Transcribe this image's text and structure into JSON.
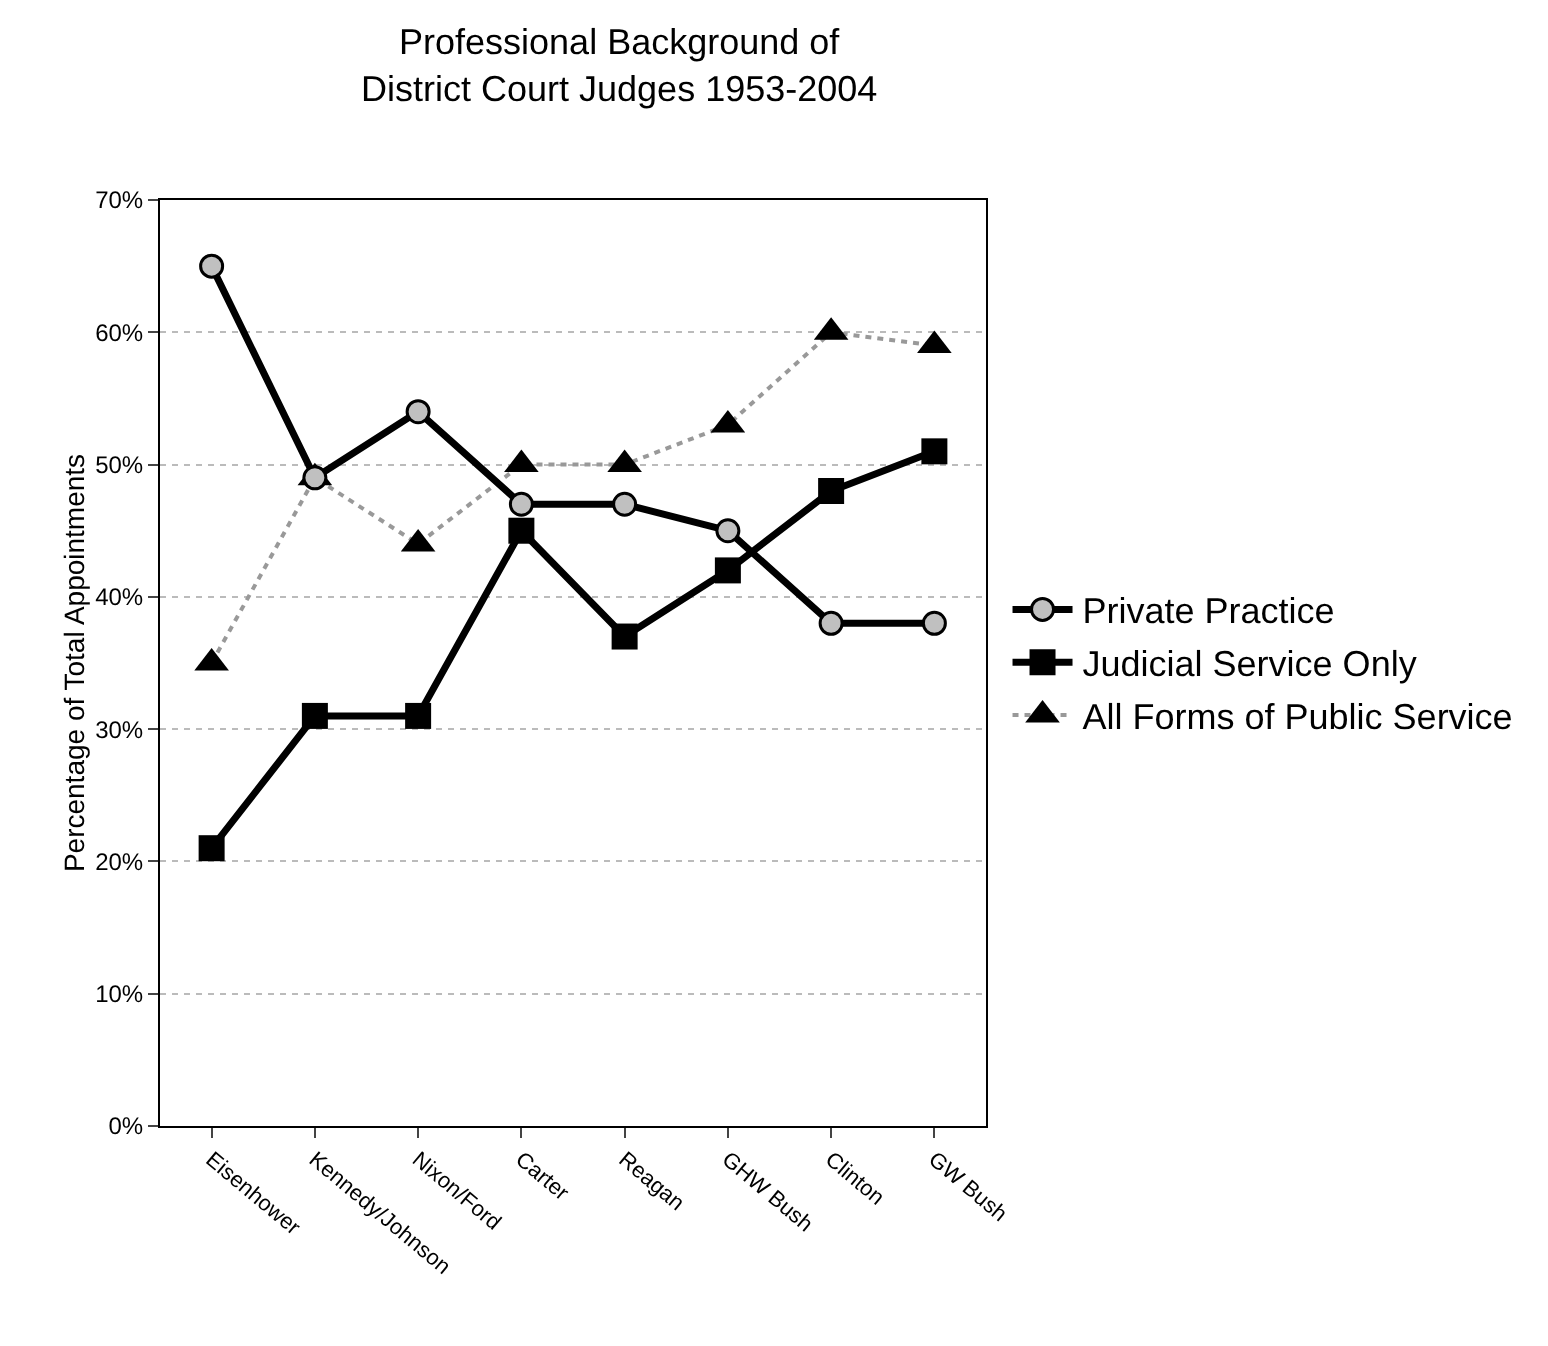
{
  "chart_data": {
    "type": "line",
    "title": "Professional Background of\nDistrict Court Judges 1953-2004",
    "ylabel": "Percentage of Total Appointments",
    "categories": [
      "Eisenhower",
      "Kennedy/Johnson",
      "Nixon/Ford",
      "Carter",
      "Reagan",
      "GHW Bush",
      "Clinton",
      "GW Bush"
    ],
    "series": [
      {
        "name": "Private Practice",
        "color": "#000000",
        "marker": "circle",
        "line_style": "solid",
        "values": [
          65,
          49,
          54,
          47,
          47,
          45,
          38,
          38
        ]
      },
      {
        "name": "Judicial Service Only",
        "color": "#000000",
        "marker": "square",
        "line_style": "solid",
        "values": [
          21,
          31,
          31,
          45,
          37,
          42,
          48,
          51
        ]
      },
      {
        "name": "All Forms of Public Service",
        "color": "#999999",
        "marker": "triangle",
        "line_style": "dotted",
        "values": [
          35,
          49,
          44,
          50,
          50,
          53,
          60,
          59
        ]
      }
    ],
    "ylim": [
      0,
      70
    ],
    "yticks": [
      {
        "value": 0,
        "label": "0%"
      },
      {
        "value": 10,
        "label": "10%"
      },
      {
        "value": 20,
        "label": "20%"
      },
      {
        "value": 30,
        "label": "30%"
      },
      {
        "value": 40,
        "label": "40%"
      },
      {
        "value": 50,
        "label": "50%"
      },
      {
        "value": 60,
        "label": "60%"
      },
      {
        "value": 70,
        "label": "70%"
      }
    ],
    "grid": "y",
    "legend": "right"
  }
}
